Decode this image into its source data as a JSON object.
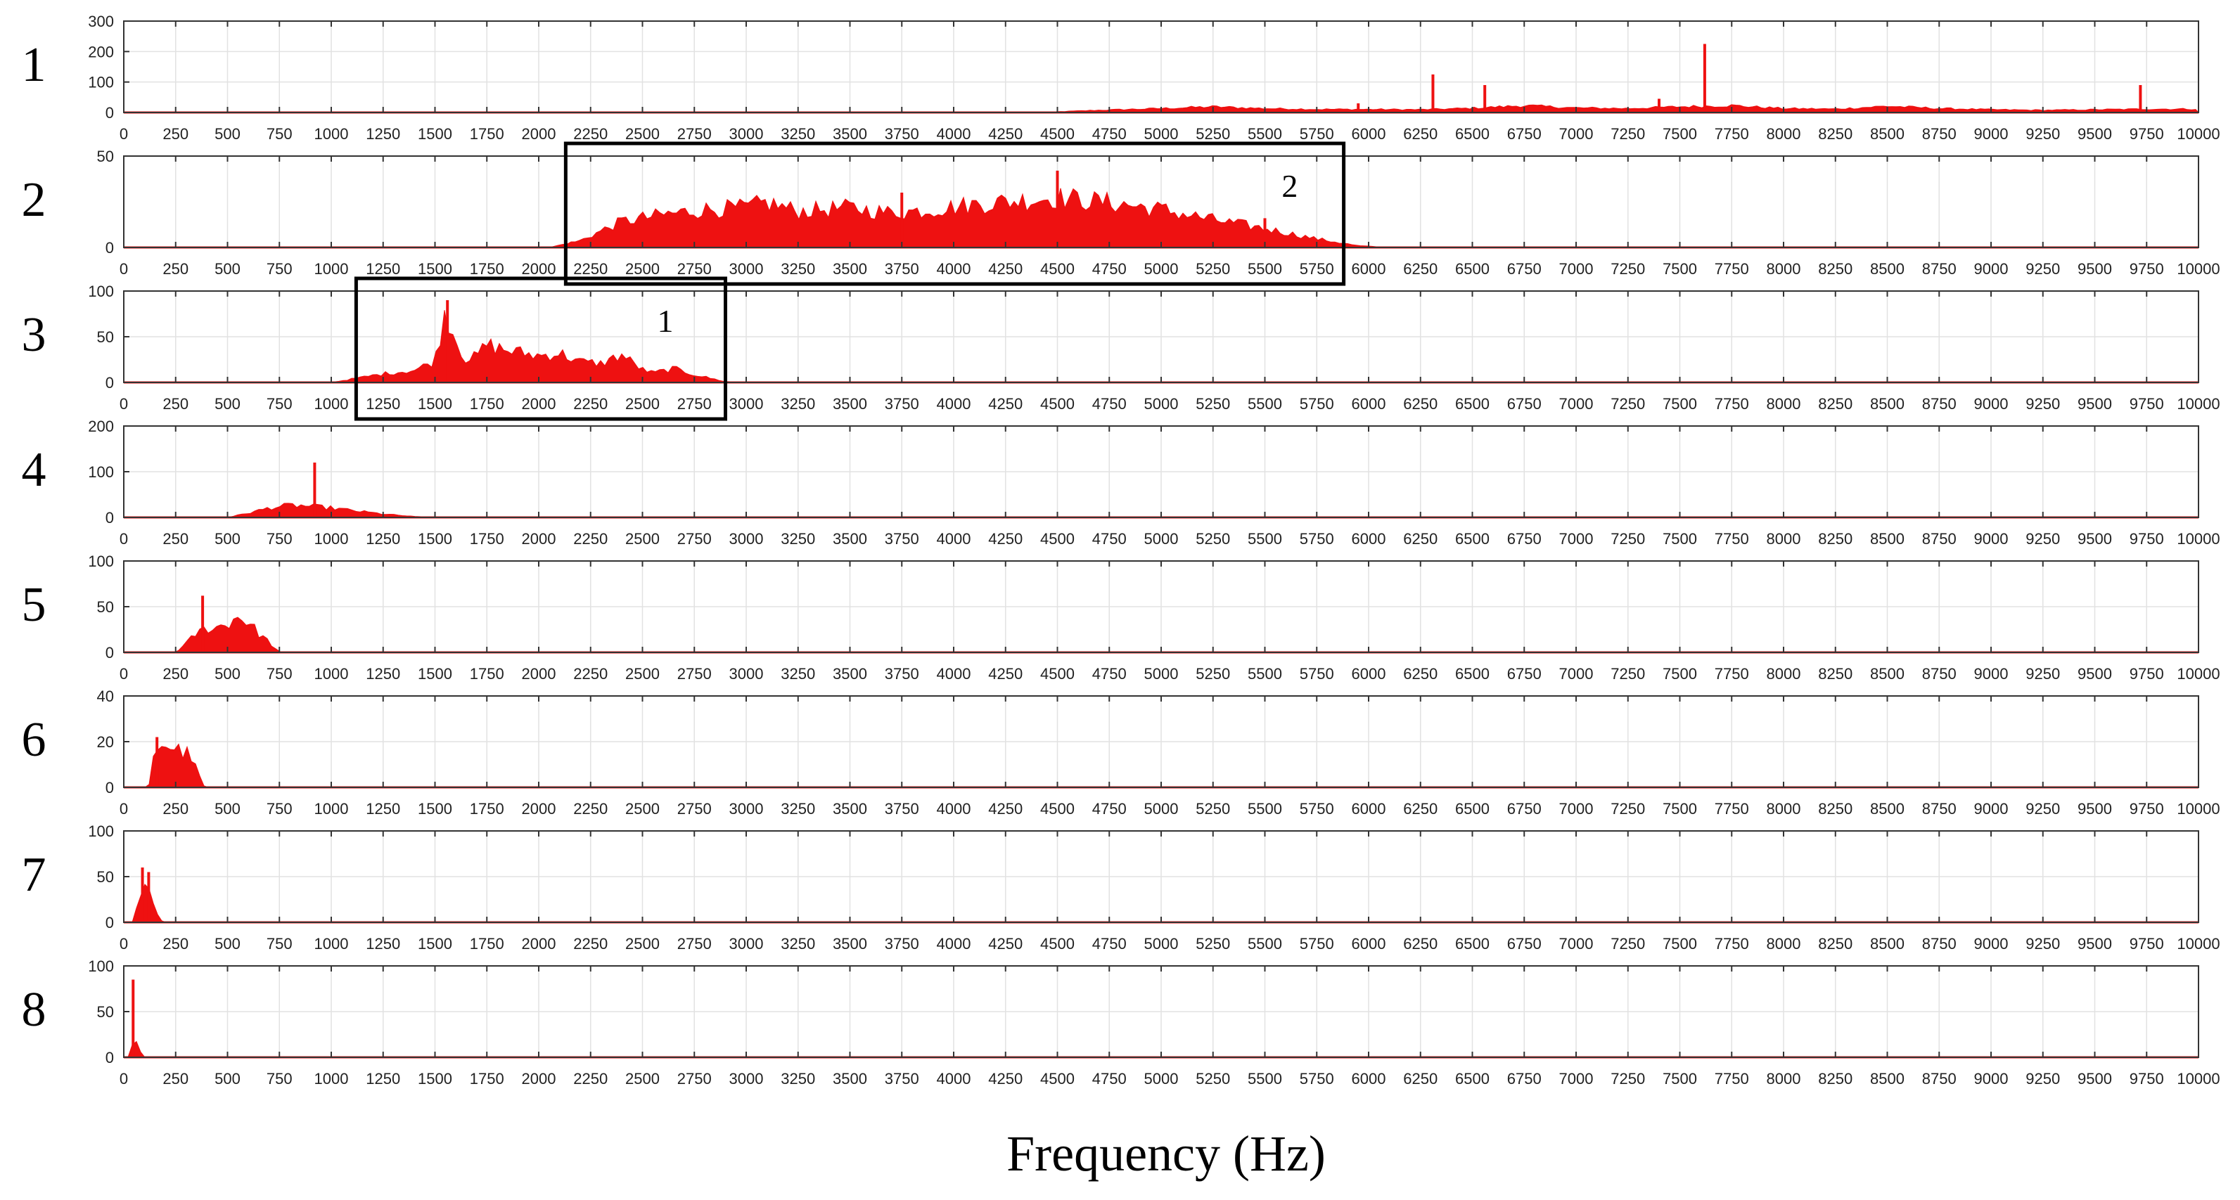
{
  "chart_data": {
    "type": "area",
    "xlabel": "Frequency (Hz)",
    "xlim": [
      0,
      10000
    ],
    "x_ticks": [
      0,
      250,
      500,
      750,
      1000,
      1250,
      1500,
      1750,
      2000,
      2250,
      2500,
      2750,
      3000,
      3250,
      3500,
      3750,
      4000,
      4250,
      4500,
      4750,
      5000,
      5250,
      5500,
      5750,
      6000,
      6250,
      6500,
      6750,
      7000,
      7250,
      7500,
      7750,
      8000,
      8250,
      8500,
      8750,
      9000,
      9250,
      9500,
      9750,
      10000
    ],
    "grid": true,
    "color": "#ee1111",
    "panels": [
      {
        "label": "1",
        "ylim": [
          0,
          300
        ],
        "y_ticks": [
          0,
          100,
          200,
          300
        ],
        "envelope": [
          [
            0,
            0
          ],
          [
            4400,
            0
          ],
          [
            4700,
            8
          ],
          [
            5000,
            14
          ],
          [
            5250,
            20
          ],
          [
            5500,
            14
          ],
          [
            5750,
            11
          ],
          [
            6000,
            11
          ],
          [
            6250,
            10
          ],
          [
            6500,
            15
          ],
          [
            6750,
            24
          ],
          [
            7000,
            16
          ],
          [
            7250,
            14
          ],
          [
            7500,
            20
          ],
          [
            7750,
            24
          ],
          [
            8000,
            14
          ],
          [
            8250,
            12
          ],
          [
            8500,
            22
          ],
          [
            8750,
            14
          ],
          [
            9000,
            10
          ],
          [
            9250,
            8
          ],
          [
            9500,
            10
          ],
          [
            9750,
            12
          ],
          [
            10000,
            12
          ]
        ],
        "spikes": [
          [
            6310,
            125
          ],
          [
            6560,
            90
          ],
          [
            7620,
            225
          ],
          [
            9720,
            90
          ],
          [
            5950,
            30
          ],
          [
            7400,
            45
          ]
        ]
      },
      {
        "label": "2",
        "ylim": [
          0,
          50
        ],
        "y_ticks": [
          0,
          50
        ],
        "envelope": [
          [
            0,
            0
          ],
          [
            2050,
            0
          ],
          [
            2200,
            4
          ],
          [
            2400,
            15
          ],
          [
            2600,
            19
          ],
          [
            2800,
            22
          ],
          [
            3000,
            23
          ],
          [
            3100,
            26
          ],
          [
            3250,
            21
          ],
          [
            3500,
            23
          ],
          [
            3700,
            20
          ],
          [
            3900,
            22
          ],
          [
            4100,
            25
          ],
          [
            4300,
            27
          ],
          [
            4500,
            29
          ],
          [
            4750,
            26
          ],
          [
            5000,
            22
          ],
          [
            5250,
            16
          ],
          [
            5500,
            11
          ],
          [
            5750,
            5
          ],
          [
            5950,
            1
          ],
          [
            6100,
            0
          ],
          [
            10000,
            0
          ]
        ],
        "spikes": [
          [
            4500,
            42
          ],
          [
            3750,
            30
          ],
          [
            5500,
            16
          ]
        ]
      },
      {
        "label": "3",
        "ylim": [
          0,
          100
        ],
        "y_ticks": [
          0,
          50,
          100
        ],
        "envelope": [
          [
            0,
            0
          ],
          [
            1000,
            0
          ],
          [
            1100,
            4
          ],
          [
            1250,
            10
          ],
          [
            1400,
            14
          ],
          [
            1500,
            25
          ],
          [
            1550,
            85
          ],
          [
            1600,
            50
          ],
          [
            1650,
            26
          ],
          [
            1700,
            30
          ],
          [
            1750,
            44
          ],
          [
            1850,
            37
          ],
          [
            2000,
            31
          ],
          [
            2100,
            34
          ],
          [
            2200,
            24
          ],
          [
            2300,
            22
          ],
          [
            2400,
            32
          ],
          [
            2500,
            15
          ],
          [
            2550,
            11
          ],
          [
            2650,
            16
          ],
          [
            2750,
            9
          ],
          [
            2900,
            1
          ],
          [
            3000,
            0
          ],
          [
            10000,
            0
          ]
        ],
        "spikes": [
          [
            1560,
            90
          ]
        ]
      },
      {
        "label": "4",
        "ylim": [
          0,
          200
        ],
        "y_ticks": [
          0,
          100,
          200
        ],
        "envelope": [
          [
            0,
            0
          ],
          [
            500,
            0
          ],
          [
            600,
            10
          ],
          [
            700,
            22
          ],
          [
            800,
            28
          ],
          [
            900,
            26
          ],
          [
            1000,
            22
          ],
          [
            1100,
            16
          ],
          [
            1250,
            8
          ],
          [
            1400,
            2
          ],
          [
            1550,
            0
          ],
          [
            10000,
            0
          ]
        ],
        "spikes": [
          [
            920,
            120
          ]
        ]
      },
      {
        "label": "5",
        "ylim": [
          0,
          100
        ],
        "y_ticks": [
          0,
          50,
          100
        ],
        "envelope": [
          [
            0,
            0
          ],
          [
            250,
            0
          ],
          [
            300,
            10
          ],
          [
            350,
            22
          ],
          [
            400,
            28
          ],
          [
            450,
            29
          ],
          [
            500,
            33
          ],
          [
            550,
            42
          ],
          [
            600,
            35
          ],
          [
            650,
            22
          ],
          [
            700,
            12
          ],
          [
            740,
            2
          ],
          [
            760,
            0
          ],
          [
            10000,
            0
          ]
        ],
        "spikes": [
          [
            380,
            62
          ]
        ]
      },
      {
        "label": "6",
        "ylim": [
          0,
          40
        ],
        "y_ticks": [
          0,
          20,
          40
        ],
        "envelope": [
          [
            0,
            0
          ],
          [
            120,
            0
          ],
          [
            140,
            12
          ],
          [
            170,
            21
          ],
          [
            220,
            19
          ],
          [
            270,
            17
          ],
          [
            320,
            15
          ],
          [
            360,
            6
          ],
          [
            390,
            0
          ],
          [
            10000,
            0
          ]
        ],
        "spikes": [
          [
            160,
            22
          ]
        ]
      },
      {
        "label": "7",
        "ylim": [
          0,
          100
        ],
        "y_ticks": [
          0,
          50,
          100
        ],
        "envelope": [
          [
            0,
            0
          ],
          [
            50,
            0
          ],
          [
            65,
            20
          ],
          [
            85,
            32
          ],
          [
            110,
            38
          ],
          [
            140,
            25
          ],
          [
            170,
            6
          ],
          [
            190,
            0
          ],
          [
            10000,
            0
          ]
        ],
        "spikes": [
          [
            90,
            60
          ],
          [
            120,
            55
          ]
        ]
      },
      {
        "label": "8",
        "ylim": [
          0,
          100
        ],
        "y_ticks": [
          0,
          50,
          100
        ],
        "envelope": [
          [
            0,
            0
          ],
          [
            25,
            0
          ],
          [
            35,
            12
          ],
          [
            50,
            28
          ],
          [
            65,
            20
          ],
          [
            80,
            6
          ],
          [
            95,
            0
          ],
          [
            10000,
            0
          ]
        ],
        "spikes": [
          [
            45,
            85
          ]
        ]
      }
    ],
    "annotations": [
      {
        "panel": "3",
        "label": "1",
        "x_range": [
          1120,
          2900
        ],
        "label_x": 2610
      },
      {
        "panel": "2",
        "label": "2",
        "x_range": [
          2130,
          5880
        ],
        "label_x": 5620
      }
    ]
  }
}
